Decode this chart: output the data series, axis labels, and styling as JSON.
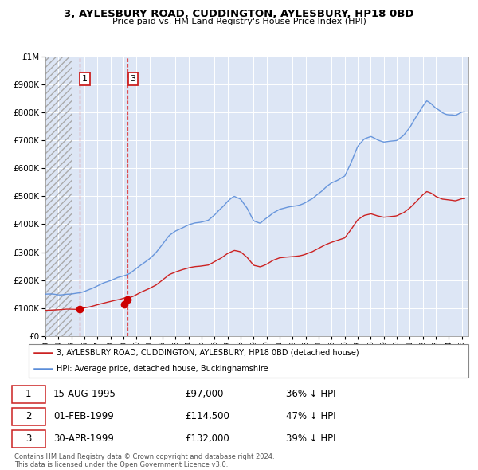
{
  "title1": "3, AYLESBURY ROAD, CUDDINGTON, AYLESBURY, HP18 0BD",
  "title2": "Price paid vs. HM Land Registry's House Price Index (HPI)",
  "legend_line1": "3, AYLESBURY ROAD, CUDDINGTON, AYLESBURY, HP18 0BD (detached house)",
  "legend_line2": "HPI: Average price, detached house, Buckinghamshire",
  "transactions": [
    {
      "label": "1",
      "date": "15-AUG-1995",
      "price": "£97,000",
      "hpi_diff": "36% ↓ HPI",
      "x_year": 1995.62,
      "y_val": 97000
    },
    {
      "label": "2",
      "date": "01-FEB-1999",
      "price": "£114,500",
      "hpi_diff": "47% ↓ HPI",
      "x_year": 1999.08,
      "y_val": 114500
    },
    {
      "label": "3",
      "date": "30-APR-1999",
      "price": "£132,000",
      "hpi_diff": "39% ↓ HPI",
      "x_year": 1999.33,
      "y_val": 132000
    }
  ],
  "vlines": [
    1995.62,
    1999.33
  ],
  "box_labels": [
    {
      "label": "1",
      "x": 1995.62
    },
    {
      "label": "3",
      "x": 1999.33
    }
  ],
  "footnote1": "Contains HM Land Registry data © Crown copyright and database right 2024.",
  "footnote2": "This data is licensed under the Open Government Licence v3.0.",
  "hpi_color": "#5b8dd9",
  "price_color": "#cc2222",
  "dot_color": "#cc0000",
  "bg_color": "#dde6f5",
  "grid_color": "#ffffff",
  "vline_color": "#dd3333",
  "ylim": [
    0,
    1000000
  ],
  "xlim_start": 1993.0,
  "xlim_end": 2025.5,
  "blue_anchors": [
    [
      1993.0,
      148000
    ],
    [
      1994.0,
      150000
    ],
    [
      1995.0,
      152000
    ],
    [
      1995.62,
      155000
    ],
    [
      1996.5,
      170000
    ],
    [
      1997.5,
      190000
    ],
    [
      1998.5,
      207000
    ],
    [
      1999.0,
      215000
    ],
    [
      1999.5,
      225000
    ],
    [
      2000.0,
      242000
    ],
    [
      2000.5,
      260000
    ],
    [
      2001.0,
      278000
    ],
    [
      2001.5,
      298000
    ],
    [
      2002.0,
      328000
    ],
    [
      2002.5,
      358000
    ],
    [
      2003.0,
      375000
    ],
    [
      2003.5,
      388000
    ],
    [
      2004.0,
      398000
    ],
    [
      2004.5,
      405000
    ],
    [
      2005.0,
      408000
    ],
    [
      2005.5,
      413000
    ],
    [
      2006.0,
      432000
    ],
    [
      2006.5,
      456000
    ],
    [
      2007.0,
      481000
    ],
    [
      2007.5,
      498000
    ],
    [
      2008.0,
      490000
    ],
    [
      2008.5,
      458000
    ],
    [
      2009.0,
      412000
    ],
    [
      2009.5,
      402000
    ],
    [
      2010.0,
      418000
    ],
    [
      2010.5,
      440000
    ],
    [
      2011.0,
      454000
    ],
    [
      2011.5,
      460000
    ],
    [
      2012.0,
      464000
    ],
    [
      2012.5,
      468000
    ],
    [
      2013.0,
      477000
    ],
    [
      2013.5,
      490000
    ],
    [
      2014.0,
      512000
    ],
    [
      2014.5,
      532000
    ],
    [
      2015.0,
      548000
    ],
    [
      2015.5,
      558000
    ],
    [
      2016.0,
      572000
    ],
    [
      2016.5,
      622000
    ],
    [
      2017.0,
      678000
    ],
    [
      2017.5,
      704000
    ],
    [
      2018.0,
      712000
    ],
    [
      2018.5,
      700000
    ],
    [
      2019.0,
      693000
    ],
    [
      2019.5,
      696000
    ],
    [
      2020.0,
      700000
    ],
    [
      2020.5,
      718000
    ],
    [
      2021.0,
      748000
    ],
    [
      2021.5,
      785000
    ],
    [
      2022.0,
      822000
    ],
    [
      2022.3,
      840000
    ],
    [
      2022.6,
      832000
    ],
    [
      2023.0,
      812000
    ],
    [
      2023.5,
      798000
    ],
    [
      2024.0,
      792000
    ],
    [
      2024.5,
      788000
    ],
    [
      2025.0,
      800000
    ]
  ]
}
